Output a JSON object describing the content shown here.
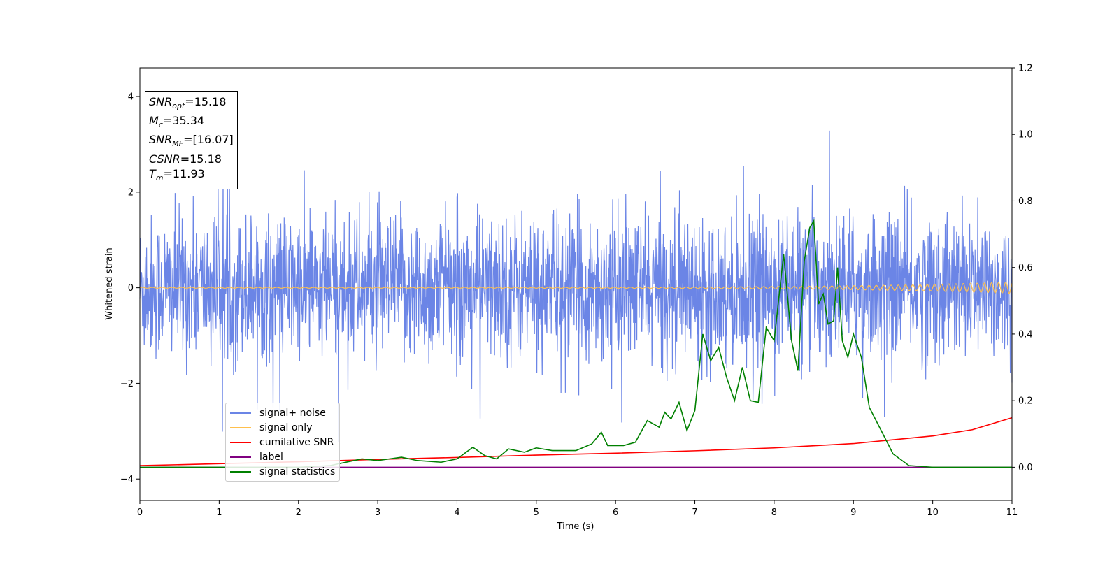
{
  "colors": {
    "signal_noise": "#6b85e6",
    "signal_only": "#ffc04d",
    "cumulative_snr": "#ff0000",
    "label": "#800080",
    "signal_statistics": "#008000"
  },
  "info": {
    "snr_opt_sym": "SNR",
    "snr_opt_sub": "opt",
    "snr_opt_val": "=15.18",
    "mc_sym": "M",
    "mc_sub": "c",
    "mc_val": "=35.34",
    "snr_mf_sym": "SNR",
    "snr_mf_sub": "MF",
    "snr_mf_val": "=[16.07]",
    "csnr_sym": "CSNR",
    "csnr_val": "=15.18",
    "tm_sym": "T",
    "tm_sub": "m",
    "tm_val": "=11.93"
  },
  "legend": [
    {
      "label": "signal+ noise",
      "color": "#6b85e6"
    },
    {
      "label": "signal only",
      "color": "#ffc04d"
    },
    {
      "label": "cumilative SNR",
      "color": "#ff0000"
    },
    {
      "label": "label",
      "color": "#800080"
    },
    {
      "label": "signal statistics",
      "color": "#008000"
    }
  ],
  "chart_data": {
    "type": "line",
    "xlabel": "Time (s)",
    "ylabel": "Whitened strain",
    "xlim": [
      0,
      11
    ],
    "ylim_left": [
      -4.45,
      4.6
    ],
    "ylim_right": [
      -0.1,
      1.2
    ],
    "x_ticks": [
      "0",
      "1",
      "2",
      "3",
      "4",
      "5",
      "6",
      "7",
      "8",
      "9",
      "10",
      "11"
    ],
    "y_ticks_left": [
      "4",
      "2",
      "0",
      "−2",
      "−4"
    ],
    "y_ticks_left_values": [
      4,
      2,
      0,
      -2,
      -4
    ],
    "y_ticks_right": [
      "1.2",
      "1.0",
      "0.8",
      "0.6",
      "0.4",
      "0.2",
      "0.0"
    ],
    "y_ticks_right_values": [
      1.2,
      1.0,
      0.8,
      0.6,
      0.4,
      0.2,
      0.0
    ],
    "grid": false,
    "legend_position": "lower-left",
    "series": [
      {
        "name": "signal+ noise",
        "axis": "left",
        "description_values": {
          "noise_std": 0.75,
          "min": -3.7,
          "max": 3.55
        }
      },
      {
        "name": "signal only",
        "axis": "left",
        "amplitude_start": 0.01,
        "amplitude_end": 0.12,
        "t_end": 11
      },
      {
        "name": "cumilative SNR",
        "axis": "left",
        "x": [
          0,
          1,
          2,
          3,
          4,
          5,
          6,
          7,
          8,
          9,
          10,
          10.5,
          11
        ],
        "y": [
          -3.72,
          -3.68,
          -3.64,
          -3.59,
          -3.55,
          -3.5,
          -3.46,
          -3.41,
          -3.35,
          -3.26,
          -3.1,
          -2.97,
          -2.72
        ]
      },
      {
        "name": "label",
        "axis": "right",
        "x": [
          0,
          11
        ],
        "y": [
          0.0,
          0.0
        ]
      },
      {
        "name": "signal statistics",
        "axis": "right",
        "x": [
          0,
          1,
          2,
          2.4,
          2.8,
          3.0,
          3.3,
          3.5,
          3.8,
          4.0,
          4.2,
          4.35,
          4.5,
          4.65,
          4.85,
          5.0,
          5.2,
          5.5,
          5.7,
          5.82,
          5.9,
          6.1,
          6.25,
          6.4,
          6.55,
          6.62,
          6.7,
          6.8,
          6.9,
          7.0,
          7.1,
          7.2,
          7.3,
          7.4,
          7.5,
          7.6,
          7.7,
          7.8,
          7.9,
          8.0,
          8.12,
          8.22,
          8.3,
          8.38,
          8.45,
          8.5,
          8.56,
          8.62,
          8.68,
          8.75,
          8.8,
          8.86,
          8.93,
          9.0,
          9.1,
          9.2,
          9.35,
          9.5,
          9.7,
          10.0,
          10.5,
          11.0
        ],
        "y": [
          0.0,
          0.0,
          0.0,
          0.005,
          0.025,
          0.02,
          0.03,
          0.02,
          0.015,
          0.025,
          0.06,
          0.035,
          0.025,
          0.055,
          0.045,
          0.058,
          0.05,
          0.05,
          0.07,
          0.105,
          0.065,
          0.065,
          0.075,
          0.14,
          0.12,
          0.165,
          0.145,
          0.195,
          0.11,
          0.17,
          0.4,
          0.32,
          0.36,
          0.27,
          0.2,
          0.3,
          0.2,
          0.195,
          0.42,
          0.38,
          0.64,
          0.38,
          0.29,
          0.62,
          0.72,
          0.74,
          0.49,
          0.52,
          0.43,
          0.44,
          0.6,
          0.38,
          0.33,
          0.4,
          0.33,
          0.18,
          0.11,
          0.04,
          0.005,
          0.0,
          0.0,
          0.0
        ]
      }
    ]
  }
}
